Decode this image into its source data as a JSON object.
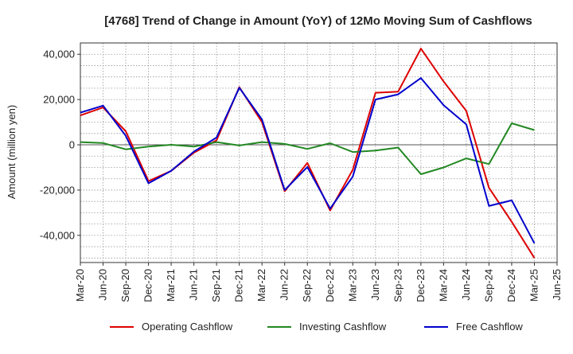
{
  "chart_data": {
    "type": "line",
    "title": "[4768]  Trend of Change in Amount (YoY) of 12Mo Moving Sum of Cashflows",
    "xlabel": "",
    "ylabel": "Amount (million yen)",
    "ylim": [
      -52000,
      45000
    ],
    "yticks": [
      -40000,
      -20000,
      0,
      20000,
      40000
    ],
    "ytick_labels": [
      "-40,000",
      "-20,000",
      "0",
      "20,000",
      "40,000"
    ],
    "grid": true,
    "legend_position": "bottom",
    "categories": [
      "Mar-20",
      "Jun-20",
      "Sep-20",
      "Dec-20",
      "Mar-21",
      "Jun-21",
      "Sep-21",
      "Dec-21",
      "Mar-22",
      "Jun-22",
      "Sep-22",
      "Dec-22",
      "Mar-23",
      "Jun-23",
      "Sep-23",
      "Dec-23",
      "Mar-24",
      "Jun-24",
      "Sep-24",
      "Dec-24",
      "Mar-25",
      "Jun-25"
    ],
    "series": [
      {
        "name": "Operating Cashflow",
        "color": "#dd0000",
        "values": [
          13000,
          16500,
          6000,
          -16000,
          -11500,
          -3500,
          2000,
          25500,
          10000,
          -20500,
          -8000,
          -29000,
          -11000,
          23000,
          23500,
          42500,
          28000,
          15000,
          -19000,
          -34000,
          -50000,
          null
        ]
      },
      {
        "name": "Investing Cashflow",
        "color": "#228822",
        "values": [
          1200,
          800,
          -2000,
          -800,
          0,
          -800,
          1200,
          -300,
          1200,
          400,
          -1800,
          700,
          -3200,
          -2500,
          -1200,
          -13000,
          -10000,
          -6000,
          -8500,
          9500,
          6500,
          null
        ]
      },
      {
        "name": "Free Cashflow",
        "color": "#0000cc",
        "values": [
          14200,
          17300,
          4000,
          -17000,
          -11500,
          -3000,
          3200,
          25200,
          11200,
          -20000,
          -9800,
          -28200,
          -14000,
          20000,
          22300,
          29500,
          17500,
          9000,
          -27000,
          -24500,
          -43500,
          null
        ]
      }
    ]
  }
}
